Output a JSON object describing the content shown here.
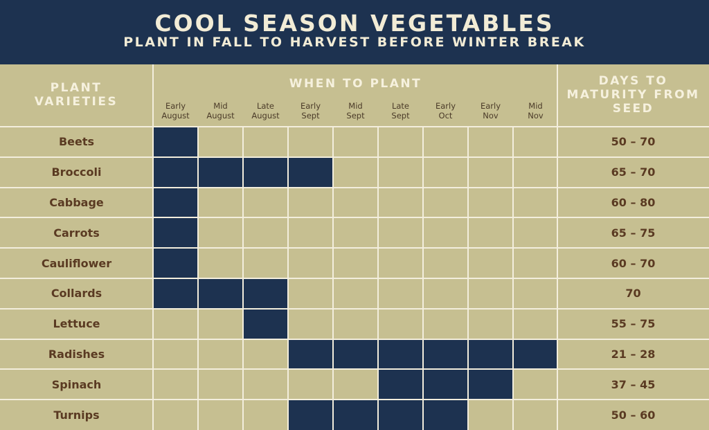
{
  "header": {
    "title": "COOL SEASON VEGETABLES",
    "subtitle": "PLANT IN FALL TO HARVEST BEFORE WINTER BREAK"
  },
  "columns": {
    "plant_varieties": "PLANT VARIETIES",
    "when_to_plant": "WHEN TO PLANT",
    "days_to_maturity": "DAYS TO MATURITY FROM SEED",
    "periods": [
      {
        "line1": "Early",
        "line2": "August"
      },
      {
        "line1": "Mid",
        "line2": "August"
      },
      {
        "line1": "Late",
        "line2": "August"
      },
      {
        "line1": "Early",
        "line2": "Sept"
      },
      {
        "line1": "Mid",
        "line2": "Sept"
      },
      {
        "line1": "Late",
        "line2": "Sept"
      },
      {
        "line1": "Early",
        "line2": "Oct"
      },
      {
        "line1": "Early",
        "line2": "Nov"
      },
      {
        "line1": "Mid",
        "line2": "Nov"
      }
    ]
  },
  "colors": {
    "navy": "#1d3250",
    "khaki": "#c6bf91",
    "cream": "#f3eedd",
    "brown_text": "#5a3a22"
  },
  "rows": [
    {
      "name": "Beets",
      "planting": [
        1,
        0,
        0,
        0,
        0,
        0,
        0,
        0,
        0
      ],
      "days": "50 – 70"
    },
    {
      "name": "Broccoli",
      "planting": [
        1,
        1,
        1,
        1,
        0,
        0,
        0,
        0,
        0
      ],
      "days": "65 – 70"
    },
    {
      "name": "Cabbage",
      "planting": [
        1,
        0,
        0,
        0,
        0,
        0,
        0,
        0,
        0
      ],
      "days": "60 – 80"
    },
    {
      "name": "Carrots",
      "planting": [
        1,
        0,
        0,
        0,
        0,
        0,
        0,
        0,
        0
      ],
      "days": "65 – 75"
    },
    {
      "name": "Cauliflower",
      "planting": [
        1,
        0,
        0,
        0,
        0,
        0,
        0,
        0,
        0
      ],
      "days": "60 – 70"
    },
    {
      "name": "Collards",
      "planting": [
        1,
        1,
        1,
        0,
        0,
        0,
        0,
        0,
        0
      ],
      "days": "70"
    },
    {
      "name": "Lettuce",
      "planting": [
        0,
        0,
        1,
        0,
        0,
        0,
        0,
        0,
        0
      ],
      "days": "55 – 75"
    },
    {
      "name": "Radishes",
      "planting": [
        0,
        0,
        0,
        1,
        1,
        1,
        1,
        1,
        1
      ],
      "days": "21 – 28"
    },
    {
      "name": "Spinach",
      "planting": [
        0,
        0,
        0,
        0,
        0,
        1,
        1,
        1,
        0
      ],
      "days": "37 – 45"
    },
    {
      "name": "Turnips",
      "planting": [
        0,
        0,
        0,
        1,
        1,
        1,
        1,
        0,
        0
      ],
      "days": "50 – 60"
    }
  ]
}
